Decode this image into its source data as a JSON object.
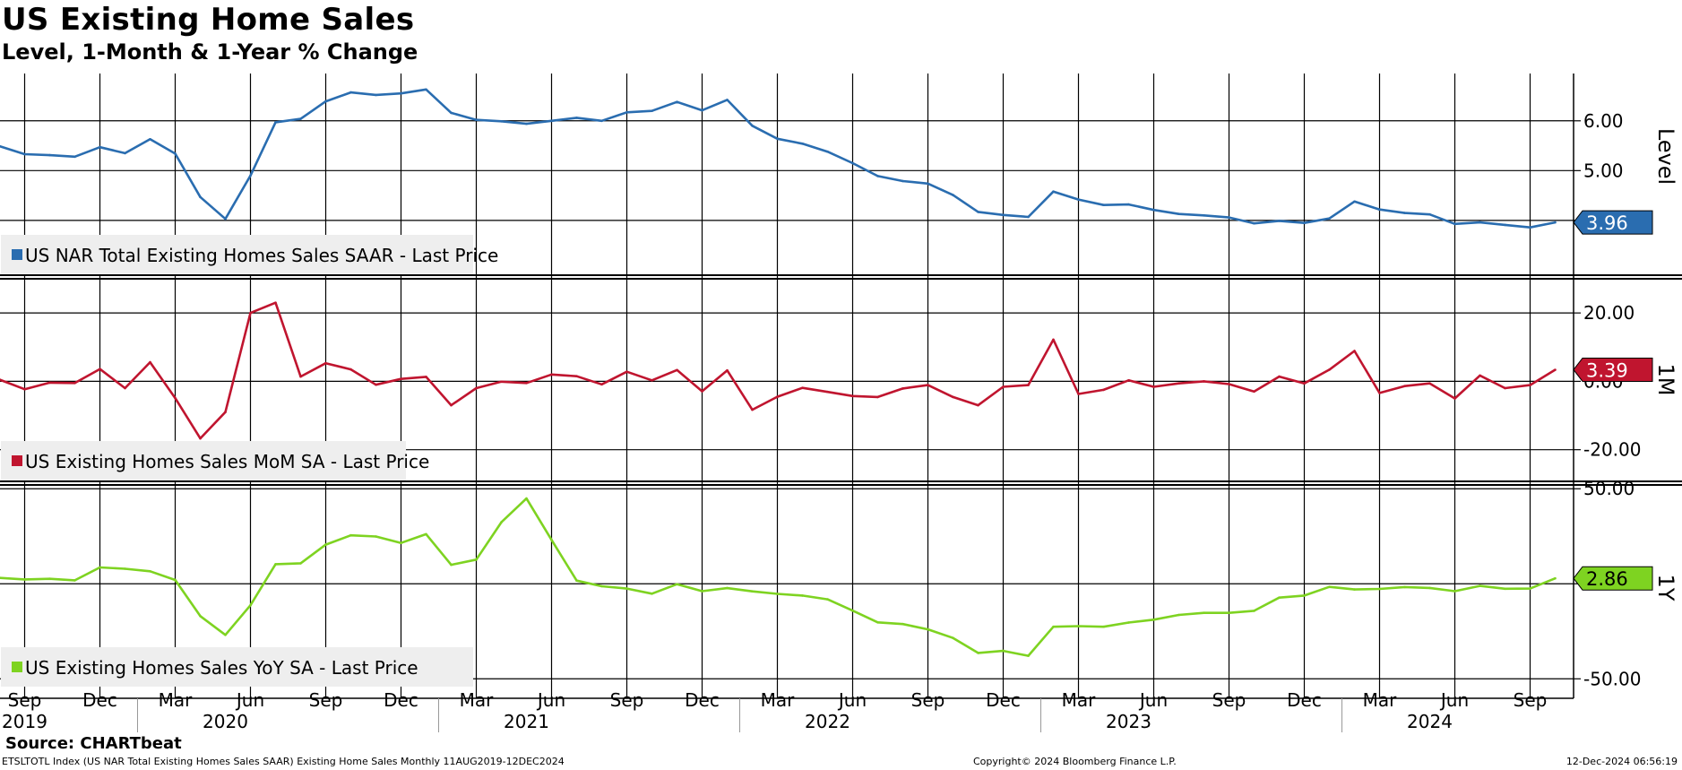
{
  "header": {
    "title": "US Existing Home Sales",
    "subtitle": "Level, 1-Month & 1-Year % Change"
  },
  "footer": {
    "source": "Source: CHARTbeat",
    "ticker_info": "ETSLTOTL Index (US NAR Total Existing Homes Sales SAAR) Existing Home Sales  Monthly 11AUG2019-12DEC2024",
    "copyright": "Copyright© 2024 Bloomberg Finance L.P.",
    "timestamp": "12-Dec-2024 06:56:19"
  },
  "colors": {
    "level": "#2a6db0",
    "mom": "#c0152f",
    "yoy": "#7ed321",
    "grid": "#000000"
  },
  "chart_data": {
    "type": "line",
    "x_months": [
      "Aug 2019",
      "Sep 2019",
      "Oct 2019",
      "Nov 2019",
      "Dec 2019",
      "Jan 2020",
      "Feb 2020",
      "Mar 2020",
      "Apr 2020",
      "May 2020",
      "Jun 2020",
      "Jul 2020",
      "Aug 2020",
      "Sep 2020",
      "Oct 2020",
      "Nov 2020",
      "Dec 2020",
      "Jan 2021",
      "Feb 2021",
      "Mar 2021",
      "Apr 2021",
      "May 2021",
      "Jun 2021",
      "Jul 2021",
      "Aug 2021",
      "Sep 2021",
      "Oct 2021",
      "Nov 2021",
      "Dec 2021",
      "Jan 2022",
      "Feb 2022",
      "Mar 2022",
      "Apr 2022",
      "May 2022",
      "Jun 2022",
      "Jul 2022",
      "Aug 2022",
      "Sep 2022",
      "Oct 2022",
      "Nov 2022",
      "Dec 2022",
      "Jan 2023",
      "Feb 2023",
      "Mar 2023",
      "Apr 2023",
      "May 2023",
      "Jun 2023",
      "Jul 2023",
      "Aug 2023",
      "Sep 2023",
      "Oct 2023",
      "Nov 2023",
      "Dec 2023",
      "Jan 2024",
      "Feb 2024",
      "Mar 2024",
      "Apr 2024",
      "May 2024",
      "Jun 2024",
      "Jul 2024",
      "Aug 2024",
      "Sep 2024",
      "Oct 2024"
    ],
    "x_axis": {
      "month_labels": [
        {
          "label": "Sep",
          "index": 1
        },
        {
          "label": "Dec",
          "index": 4
        },
        {
          "label": "Mar",
          "index": 7
        },
        {
          "label": "Jun",
          "index": 10
        },
        {
          "label": "Sep",
          "index": 13
        },
        {
          "label": "Dec",
          "index": 16
        },
        {
          "label": "Mar",
          "index": 19
        },
        {
          "label": "Jun",
          "index": 22
        },
        {
          "label": "Sep",
          "index": 25
        },
        {
          "label": "Dec",
          "index": 28
        },
        {
          "label": "Mar",
          "index": 31
        },
        {
          "label": "Jun",
          "index": 34
        },
        {
          "label": "Sep",
          "index": 37
        },
        {
          "label": "Dec",
          "index": 40
        },
        {
          "label": "Mar",
          "index": 43
        },
        {
          "label": "Jun",
          "index": 46
        },
        {
          "label": "Sep",
          "index": 49
        },
        {
          "label": "Dec",
          "index": 52
        },
        {
          "label": "Mar",
          "index": 55
        },
        {
          "label": "Jun",
          "index": 58
        },
        {
          "label": "Sep",
          "index": 61
        }
      ],
      "year_labels": [
        {
          "label": "2019",
          "index": 1
        },
        {
          "label": "2020",
          "index": 9
        },
        {
          "label": "2021",
          "index": 21
        },
        {
          "label": "2022",
          "index": 33
        },
        {
          "label": "2023",
          "index": 45
        },
        {
          "label": "2024",
          "index": 57
        }
      ],
      "year_boundaries": [
        5.5,
        17.5,
        29.5,
        41.5,
        53.5
      ]
    },
    "panels": [
      {
        "id": "level",
        "axis_label": "Level",
        "legend": "US NAR Total Existing Homes Sales SAAR - Last Price",
        "last_value_label": "3.96",
        "ylim": [
          2.9,
          6.95
        ],
        "ticks": [
          {
            "value": 6.0,
            "label": "6.00"
          },
          {
            "value": 5.0,
            "label": "5.00"
          },
          {
            "value": 4.0,
            "label": ""
          }
        ],
        "values": [
          5.49,
          5.33,
          5.31,
          5.28,
          5.47,
          5.35,
          5.63,
          5.34,
          4.47,
          4.03,
          4.9,
          5.97,
          6.04,
          6.39,
          6.57,
          6.52,
          6.55,
          6.63,
          6.16,
          6.02,
          5.99,
          5.94,
          6.0,
          6.06,
          6.0,
          6.17,
          6.2,
          6.38,
          6.21,
          6.42,
          5.9,
          5.64,
          5.54,
          5.38,
          5.15,
          4.89,
          4.79,
          4.74,
          4.51,
          4.17,
          4.11,
          4.07,
          4.58,
          4.42,
          4.31,
          4.32,
          4.21,
          4.13,
          4.1,
          4.06,
          3.94,
          3.99,
          3.95,
          4.04,
          4.38,
          4.22,
          4.15,
          4.12,
          3.93,
          3.96,
          3.91,
          3.86,
          3.96
        ]
      },
      {
        "id": "mom",
        "axis_label": "1M",
        "legend": "US Existing Homes Sales MoM SA - Last Price",
        "last_value_label": "3.39",
        "ylim": [
          -29.0,
          30.0
        ],
        "ticks": [
          {
            "value": 20.0,
            "label": "20.00"
          },
          {
            "value": 0.0,
            "label": "0.00"
          },
          {
            "value": -20.0,
            "label": "-20.00"
          }
        ],
        "values": [
          0.5,
          -2.3,
          -0.4,
          -0.5,
          3.6,
          -2.0,
          5.6,
          -4.9,
          -16.7,
          -9.0,
          20.0,
          23.0,
          1.4,
          5.3,
          3.5,
          -1.0,
          0.7,
          1.3,
          -7.0,
          -2.0,
          -0.1,
          -0.5,
          2.0,
          1.5,
          -0.9,
          2.8,
          0.3,
          3.3,
          -2.9,
          3.2,
          -8.3,
          -4.5,
          -1.9,
          -3.1,
          -4.3,
          -4.6,
          -2.1,
          -1.1,
          -4.6,
          -7.0,
          -1.6,
          -1.1,
          12.2,
          -3.7,
          -2.5,
          0.3,
          -1.6,
          -0.6,
          0.0,
          -0.8,
          -3.0,
          1.4,
          -0.6,
          3.4,
          8.9,
          -3.4,
          -1.4,
          -0.6,
          -5.0,
          1.7,
          -2.0,
          -1.1,
          3.39
        ]
      },
      {
        "id": "yoy",
        "axis_label": "1Y",
        "legend": "US Existing Homes Sales YoY SA - Last Price",
        "last_value_label": "2.86",
        "ylim": [
          -56.0,
          52.0
        ],
        "ticks": [
          {
            "value": 50.0,
            "label": "50.00"
          },
          {
            "value": 0.0,
            "label": ""
          },
          {
            "value": -50.0,
            "label": "-50.00"
          }
        ],
        "values": [
          3.1,
          2.3,
          2.6,
          1.8,
          8.6,
          7.9,
          6.6,
          2.0,
          -17.0,
          -26.9,
          -11.3,
          10.3,
          10.8,
          20.6,
          25.5,
          24.9,
          21.5,
          26.1,
          10.0,
          12.7,
          32.4,
          44.9,
          23.1,
          1.7,
          -1.3,
          -2.5,
          -5.2,
          -0.2,
          -3.9,
          -2.3,
          -4.0,
          -5.3,
          -6.2,
          -8.2,
          -14.1,
          -20.3,
          -21.2,
          -24.0,
          -28.5,
          -36.4,
          -35.3,
          -37.9,
          -22.6,
          -22.3,
          -22.6,
          -20.4,
          -18.9,
          -16.4,
          -15.3,
          -15.3,
          -14.2,
          -7.3,
          -6.2,
          -1.6,
          -3.0,
          -2.7,
          -1.7,
          -2.2,
          -3.9,
          -1.1,
          -2.6,
          -2.5,
          2.86
        ]
      }
    ]
  }
}
